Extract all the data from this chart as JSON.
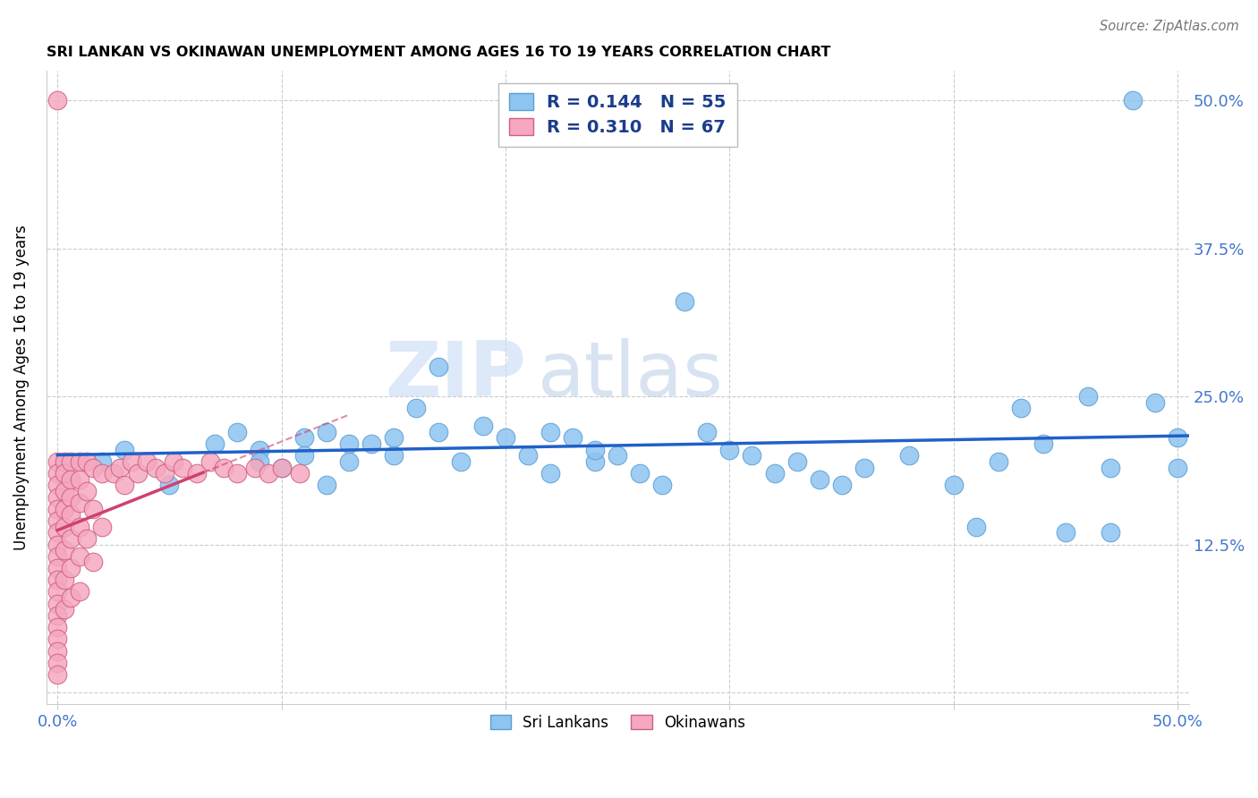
{
  "title": "SRI LANKAN VS OKINAWAN UNEMPLOYMENT AMONG AGES 16 TO 19 YEARS CORRELATION CHART",
  "source": "Source: ZipAtlas.com",
  "ylabel": "Unemployment Among Ages 16 to 19 years",
  "xlim": [
    -0.005,
    0.505
  ],
  "ylim": [
    -0.01,
    0.525
  ],
  "ytick_vals": [
    0.0,
    0.125,
    0.25,
    0.375,
    0.5
  ],
  "ytick_labels_right": [
    "",
    "12.5%",
    "25.0%",
    "37.5%",
    "50.0%"
  ],
  "xtick_vals": [
    0.0,
    0.1,
    0.2,
    0.3,
    0.4,
    0.5
  ],
  "xtick_labels": [
    "0.0%",
    "",
    "",
    "",
    "",
    "50.0%"
  ],
  "sri_lanka_color": "#8ec4f0",
  "sri_lanka_edge": "#5a9fd4",
  "okinawa_color": "#f5a8c0",
  "okinawa_edge": "#d06080",
  "sri_lanka_R": 0.144,
  "sri_lanka_N": 55,
  "okinawa_R": 0.31,
  "okinawa_N": 67,
  "legend_sri_lanka": "Sri Lankans",
  "legend_okinawa": "Okinawans",
  "trend_sri_lanka_color": "#2060c8",
  "trend_okinawa_color": "#d04070",
  "watermark_zip": "ZIP",
  "watermark_atlas": "atlas",
  "sl_x": [
    0.02,
    0.03,
    0.05,
    0.07,
    0.08,
    0.09,
    0.09,
    0.1,
    0.11,
    0.11,
    0.12,
    0.12,
    0.13,
    0.13,
    0.14,
    0.15,
    0.15,
    0.16,
    0.17,
    0.17,
    0.18,
    0.19,
    0.2,
    0.21,
    0.22,
    0.22,
    0.23,
    0.24,
    0.24,
    0.25,
    0.26,
    0.27,
    0.28,
    0.29,
    0.3,
    0.31,
    0.32,
    0.33,
    0.34,
    0.35,
    0.36,
    0.38,
    0.4,
    0.41,
    0.42,
    0.43,
    0.44,
    0.45,
    0.46,
    0.47,
    0.47,
    0.48,
    0.49,
    0.5,
    0.5
  ],
  "sl_y": [
    0.195,
    0.205,
    0.175,
    0.21,
    0.22,
    0.205,
    0.195,
    0.19,
    0.215,
    0.2,
    0.175,
    0.22,
    0.21,
    0.195,
    0.21,
    0.2,
    0.215,
    0.24,
    0.275,
    0.22,
    0.195,
    0.225,
    0.215,
    0.2,
    0.185,
    0.22,
    0.215,
    0.195,
    0.205,
    0.2,
    0.185,
    0.175,
    0.33,
    0.22,
    0.205,
    0.2,
    0.185,
    0.195,
    0.18,
    0.175,
    0.19,
    0.2,
    0.175,
    0.14,
    0.195,
    0.24,
    0.21,
    0.135,
    0.25,
    0.135,
    0.19,
    0.5,
    0.245,
    0.19,
    0.215
  ],
  "ok_x": [
    0.0,
    0.0,
    0.0,
    0.0,
    0.0,
    0.0,
    0.0,
    0.0,
    0.0,
    0.0,
    0.0,
    0.0,
    0.0,
    0.0,
    0.0,
    0.0,
    0.0,
    0.0,
    0.0,
    0.0,
    0.003,
    0.003,
    0.003,
    0.003,
    0.003,
    0.003,
    0.003,
    0.003,
    0.006,
    0.006,
    0.006,
    0.006,
    0.006,
    0.006,
    0.006,
    0.01,
    0.01,
    0.01,
    0.01,
    0.01,
    0.01,
    0.013,
    0.013,
    0.013,
    0.016,
    0.016,
    0.016,
    0.02,
    0.02,
    0.025,
    0.028,
    0.03,
    0.033,
    0.036,
    0.04,
    0.044,
    0.048,
    0.052,
    0.056,
    0.062,
    0.068,
    0.074,
    0.08,
    0.088,
    0.094,
    0.1,
    0.108
  ],
  "ok_y": [
    0.5,
    0.195,
    0.185,
    0.175,
    0.165,
    0.155,
    0.145,
    0.135,
    0.125,
    0.115,
    0.105,
    0.095,
    0.085,
    0.075,
    0.065,
    0.055,
    0.045,
    0.035,
    0.025,
    0.015,
    0.195,
    0.185,
    0.17,
    0.155,
    0.14,
    0.12,
    0.095,
    0.07,
    0.195,
    0.18,
    0.165,
    0.15,
    0.13,
    0.105,
    0.08,
    0.195,
    0.18,
    0.16,
    0.14,
    0.115,
    0.085,
    0.195,
    0.17,
    0.13,
    0.19,
    0.155,
    0.11,
    0.185,
    0.14,
    0.185,
    0.19,
    0.175,
    0.195,
    0.185,
    0.195,
    0.19,
    0.185,
    0.195,
    0.19,
    0.185,
    0.195,
    0.19,
    0.185,
    0.19,
    0.185,
    0.19,
    0.185
  ],
  "grid_color": "#cccccc",
  "tick_label_color": "#4477cc",
  "spine_color": "#cccccc"
}
